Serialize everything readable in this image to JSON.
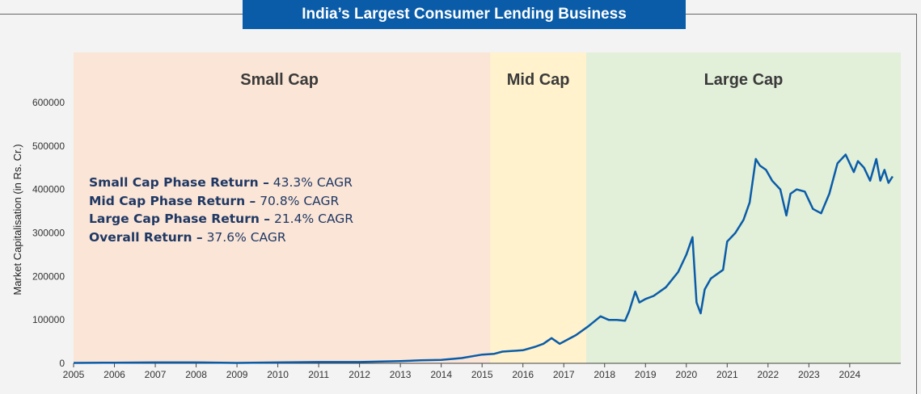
{
  "title": "India’s Largest Consumer Lending Business",
  "notes": [
    {
      "label": "Small Cap Phase Return –",
      "value": " 43.3% CAGR"
    },
    {
      "label": "Mid Cap Phase Return –",
      "value": " 70.8% CAGR"
    },
    {
      "label": "Large Cap Phase Return –",
      "value": " 21.4% CAGR"
    },
    {
      "label": "Overall Return –",
      "value": " 37.6% CAGR"
    }
  ],
  "chart_data": {
    "type": "line",
    "title": "India’s Largest Consumer Lending Business",
    "xlabel": "",
    "ylabel": "Market Capitalisation (in Rs. Cr.)",
    "xlim": [
      2005,
      2025.25
    ],
    "ylim": [
      0,
      715000
    ],
    "grid": false,
    "line_color": "#0a5ca8",
    "x_ticks": [
      "2005",
      "2006",
      "2007",
      "2008",
      "2009",
      "2010",
      "2011",
      "2012",
      "2013",
      "2014",
      "2015",
      "2016",
      "2017",
      "2018",
      "2019",
      "2020",
      "2021",
      "2022",
      "2023",
      "2024"
    ],
    "y_ticks": [
      "0",
      "100000",
      "200000",
      "300000",
      "400000",
      "500000",
      "600000"
    ],
    "phases": [
      {
        "name": "Small Cap",
        "start": 2005,
        "end": 2015.2,
        "color": "#fbe5d6"
      },
      {
        "name": "Mid Cap",
        "start": 2015.2,
        "end": 2017.55,
        "color": "#fff2cc"
      },
      {
        "name": "Large Cap",
        "start": 2017.55,
        "end": 2025.25,
        "color": "#e2efd9"
      }
    ],
    "series": [
      {
        "x": [
          2005,
          2006,
          2007,
          2008,
          2009,
          2010,
          2011,
          2012,
          2013,
          2013.5,
          2014,
          2014.5,
          2015,
          2015.3,
          2015.5,
          2016,
          2016.3,
          2016.5,
          2016.7,
          2016.9,
          2017.1,
          2017.3,
          2017.6,
          2017.9,
          2018.1,
          2018.3,
          2018.5,
          2018.6,
          2018.75,
          2018.85,
          2019,
          2019.2,
          2019.5,
          2019.8,
          2020,
          2020.15,
          2020.25,
          2020.35,
          2020.45,
          2020.6,
          2020.9,
          2021.0,
          2021.2,
          2021.4,
          2021.55,
          2021.7,
          2021.8,
          2021.95,
          2022.1,
          2022.3,
          2022.45,
          2022.55,
          2022.7,
          2022.9,
          2023.1,
          2023.3,
          2023.5,
          2023.7,
          2023.9,
          2024.1,
          2024.2,
          2024.35,
          2024.5,
          2024.65,
          2024.75,
          2024.85,
          2024.95,
          2025.05
        ],
        "y": [
          1000,
          1500,
          2000,
          2000,
          1000,
          2000,
          3000,
          3000,
          5000,
          7000,
          8000,
          12000,
          20000,
          22000,
          27000,
          30000,
          38000,
          45000,
          58000,
          45000,
          55000,
          65000,
          85000,
          108000,
          100000,
          100000,
          98000,
          120000,
          165000,
          140000,
          148000,
          155000,
          175000,
          210000,
          250000,
          290000,
          140000,
          115000,
          170000,
          195000,
          215000,
          280000,
          300000,
          330000,
          370000,
          470000,
          455000,
          445000,
          420000,
          400000,
          340000,
          390000,
          400000,
          395000,
          355000,
          345000,
          390000,
          460000,
          480000,
          440000,
          465000,
          450000,
          420000,
          470000,
          420000,
          445000,
          415000,
          430000
        ]
      }
    ]
  }
}
